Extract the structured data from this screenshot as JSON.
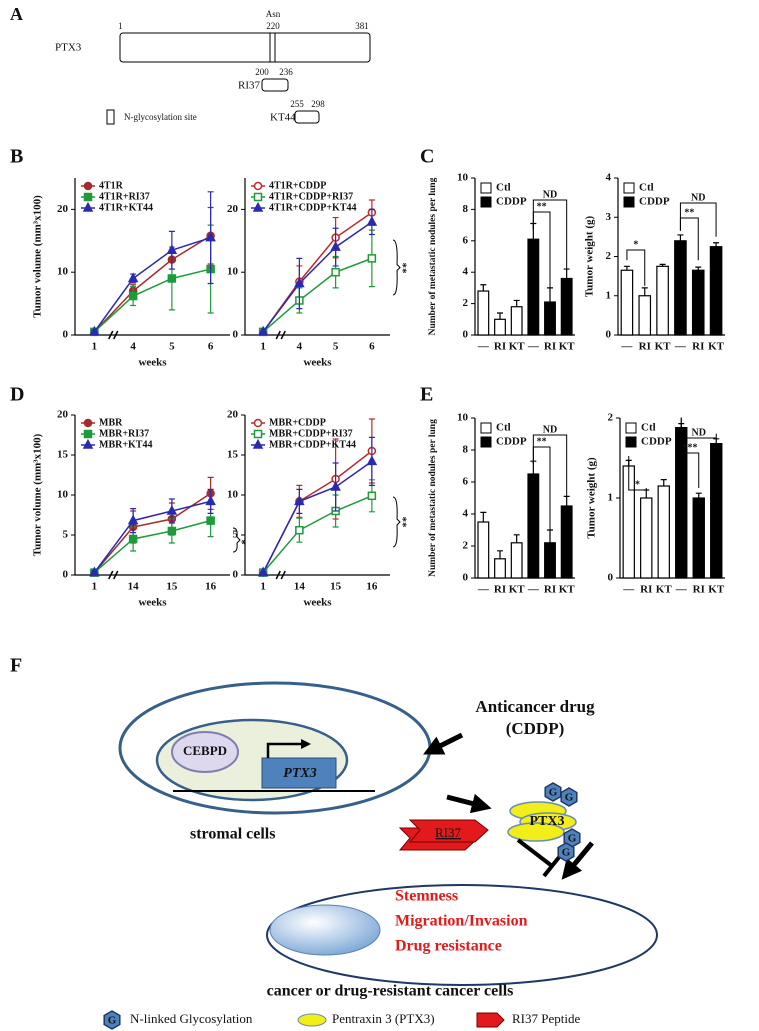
{
  "panel_labels": [
    "A",
    "B",
    "C",
    "D",
    "E",
    "F"
  ],
  "diagram_a": {
    "protein": "PTX3",
    "start": 1,
    "site_label": "Asn",
    "site": 220,
    "end": 381,
    "peptide1": {
      "name": "RI37",
      "start": 200,
      "end": 236
    },
    "peptide2": {
      "name": "KT44",
      "start": 255,
      "end": 298
    },
    "legend": "N-glycosylation site"
  },
  "chart_data": [
    {
      "type": "line",
      "categories": [
        "1",
        "4",
        "5",
        "6"
      ],
      "xlabel": "weeks",
      "ylabel": "Tumor volume (mm³x100)",
      "ylim": [
        0,
        25
      ],
      "yticks": [
        0,
        10,
        20
      ],
      "series": [
        {
          "name": "4T1R",
          "color": "#a52a2a",
          "marker": "circle",
          "filled": true,
          "values": [
            0.5,
            7,
            12,
            15.8
          ],
          "errors": [
            0.3,
            1,
            1.5,
            4.5
          ]
        },
        {
          "name": "4T1R+RI37",
          "color": "#1e9a3a",
          "marker": "square",
          "filled": true,
          "values": [
            0.5,
            6.2,
            9,
            10.5
          ],
          "errors": [
            0.3,
            1.5,
            5,
            7
          ]
        },
        {
          "name": "4T1R+KT44",
          "color": "#2a2ab0",
          "marker": "triangle",
          "filled": true,
          "values": [
            0.5,
            9,
            13.5,
            15.5
          ],
          "errors": [
            0.3,
            0.7,
            3,
            7.3
          ]
        }
      ],
      "annotations": []
    },
    {
      "type": "line",
      "categories": [
        "1",
        "4",
        "5",
        "6"
      ],
      "xlabel": "weeks",
      "ylim": [
        0,
        25
      ],
      "yticks": [
        0,
        10,
        20
      ],
      "series": [
        {
          "name": "4T1R+CDDP",
          "color": "#c0282a",
          "marker": "circle",
          "filled": false,
          "values": [
            0.5,
            8.5,
            15.5,
            19.5
          ],
          "errors": [
            0.3,
            2.5,
            3.2,
            2
          ]
        },
        {
          "name": "4T1R+CDDP+RI37",
          "color": "#1e9a3a",
          "marker": "square",
          "filled": false,
          "values": [
            0.5,
            5.5,
            10,
            12.2
          ],
          "errors": [
            0.3,
            2,
            2.5,
            4.5
          ]
        },
        {
          "name": "4T1R+CDDP+KT44",
          "color": "#2a2ab0",
          "marker": "triangle",
          "filled": true,
          "values": [
            0.5,
            8.2,
            14,
            18
          ],
          "errors": [
            0.3,
            4,
            3,
            2
          ]
        }
      ],
      "annotations": [
        "**"
      ]
    },
    {
      "type": "bar",
      "categories": [
        "—",
        "RI",
        "KT",
        "—",
        "RI",
        "KT"
      ],
      "ylabel": "Number of metastatic nodules per lung",
      "ylim": [
        0,
        10
      ],
      "yticks": [
        0,
        2,
        4,
        6,
        8,
        10
      ],
      "series": [
        {
          "name": "Ctl",
          "color": "#ffffff",
          "values": [
            2.8,
            1.0,
            1.8,
            null,
            null,
            null
          ],
          "errors": [
            0.4,
            0.4,
            0.4,
            null,
            null,
            null
          ]
        },
        {
          "name": "CDDP",
          "color": "#000000",
          "values": [
            null,
            null,
            null,
            6.1,
            2.1,
            3.6
          ],
          "errors": [
            null,
            null,
            null,
            1.0,
            0.9,
            0.6
          ]
        }
      ],
      "annotations": [
        "**",
        "ND"
      ]
    },
    {
      "type": "bar",
      "categories": [
        "—",
        "RI",
        "KT",
        "—",
        "RI",
        "KT"
      ],
      "ylabel": "Tumor weight (g)",
      "ylim": [
        0,
        4
      ],
      "yticks": [
        0,
        1,
        2,
        3,
        4
      ],
      "series": [
        {
          "name": "Ctl",
          "color": "#ffffff",
          "values": [
            1.65,
            1.0,
            1.75,
            null,
            null,
            null
          ],
          "errors": [
            0.1,
            0.2,
            0.05,
            null,
            null,
            null
          ]
        },
        {
          "name": "CDDP",
          "color": "#000000",
          "values": [
            null,
            null,
            null,
            2.4,
            1.65,
            2.25
          ],
          "errors": [
            null,
            null,
            null,
            0.15,
            0.08,
            0.1
          ]
        }
      ],
      "annotations": [
        "*",
        "**",
        "ND"
      ]
    },
    {
      "type": "line",
      "categories": [
        "1",
        "14",
        "15",
        "16"
      ],
      "xlabel": "weeks",
      "ylabel": "Tumor volume (mm³x100)",
      "ylim": [
        0,
        20
      ],
      "yticks": [
        0,
        5,
        10,
        15,
        20
      ],
      "series": [
        {
          "name": "MBR",
          "color": "#a52a2a",
          "marker": "circle",
          "filled": true,
          "values": [
            0.3,
            6,
            7,
            10.2
          ],
          "errors": [
            0.2,
            2,
            2,
            2
          ]
        },
        {
          "name": "MBR+RI37",
          "color": "#1e9a3a",
          "marker": "square",
          "filled": true,
          "values": [
            0.3,
            4.5,
            5.5,
            6.8
          ],
          "errors": [
            0.2,
            1.5,
            1.5,
            2
          ]
        },
        {
          "name": "MBR+KT44",
          "color": "#2a2ab0",
          "marker": "triangle",
          "filled": true,
          "values": [
            0.3,
            6.8,
            8,
            9.2
          ],
          "errors": [
            0.2,
            1.5,
            1.5,
            1.5
          ]
        }
      ],
      "annotations": [
        "*"
      ]
    },
    {
      "type": "line",
      "categories": [
        "1",
        "14",
        "15",
        "16"
      ],
      "xlabel": "weeks",
      "ylim": [
        0,
        20
      ],
      "yticks": [
        0,
        5,
        10,
        15,
        20
      ],
      "series": [
        {
          "name": "MBR+CDDP",
          "color": "#c0282a",
          "marker": "circle",
          "filled": false,
          "values": [
            0.3,
            9.2,
            12,
            15.5
          ],
          "errors": [
            0.2,
            2,
            5,
            4
          ]
        },
        {
          "name": "MBR+CDDP+RI37",
          "color": "#1e9a3a",
          "marker": "square",
          "filled": false,
          "values": [
            0.3,
            5.6,
            8,
            9.9
          ],
          "errors": [
            0.2,
            1.5,
            2,
            2
          ]
        },
        {
          "name": "MBR+CDDP+KT44",
          "color": "#2a2ab0",
          "marker": "triangle",
          "filled": true,
          "values": [
            0.3,
            9.2,
            11,
            14.2
          ],
          "errors": [
            0.2,
            1.5,
            3,
            3
          ]
        }
      ],
      "annotations": [
        "**"
      ]
    },
    {
      "type": "bar",
      "categories": [
        "—",
        "RI",
        "KT",
        "—",
        "RI",
        "KT"
      ],
      "ylabel": "Number of metastatic nodules per lung",
      "ylim": [
        0,
        10
      ],
      "yticks": [
        0,
        2,
        4,
        6,
        8,
        10
      ],
      "series": [
        {
          "name": "Ctl",
          "color": "#ffffff",
          "values": [
            3.5,
            1.2,
            2.2,
            null,
            null,
            null
          ],
          "errors": [
            0.6,
            0.5,
            0.5,
            null,
            null,
            null
          ]
        },
        {
          "name": "CDDP",
          "color": "#000000",
          "values": [
            null,
            null,
            null,
            6.5,
            2.2,
            4.5
          ],
          "errors": [
            null,
            null,
            null,
            0.8,
            0.8,
            0.6
          ]
        }
      ],
      "annotations": [
        "**",
        "ND"
      ]
    },
    {
      "type": "bar",
      "categories": [
        "—",
        "RI",
        "KT",
        "—",
        "RI",
        "KT"
      ],
      "ylabel": "Tumor weight (g)",
      "ylim": [
        0,
        2
      ],
      "yticks": [
        0,
        1,
        2
      ],
      "series": [
        {
          "name": "Ctl",
          "color": "#ffffff",
          "values": [
            1.4,
            1.0,
            1.15,
            null,
            null,
            null
          ],
          "errors": [
            0.07,
            0.1,
            0.08,
            null,
            null,
            null
          ]
        },
        {
          "name": "CDDP",
          "color": "#000000",
          "values": [
            null,
            null,
            null,
            1.88,
            1.0,
            1.68
          ],
          "errors": [
            null,
            null,
            null,
            0.05,
            0.06,
            0.06
          ]
        }
      ],
      "annotations": [
        "*",
        "***",
        "ND"
      ]
    }
  ],
  "diagram_f": {
    "drug": "Anticancer drug",
    "drug_abbr": "(CDDP)",
    "tf": "CEBPD",
    "gene": "PTX3",
    "protein": "PTX3",
    "glyco_symbol": "G",
    "peptide": "RI37",
    "stromal": "stromal cells",
    "effects": [
      "Stemness",
      "Migration/Invasion",
      "Drug resistance"
    ],
    "cancer": "cancer or drug-resistant cancer cells",
    "legend": [
      "N-linked Glycosylation",
      "Pentraxin 3 (PTX3)",
      "RI37 Peptide"
    ]
  }
}
